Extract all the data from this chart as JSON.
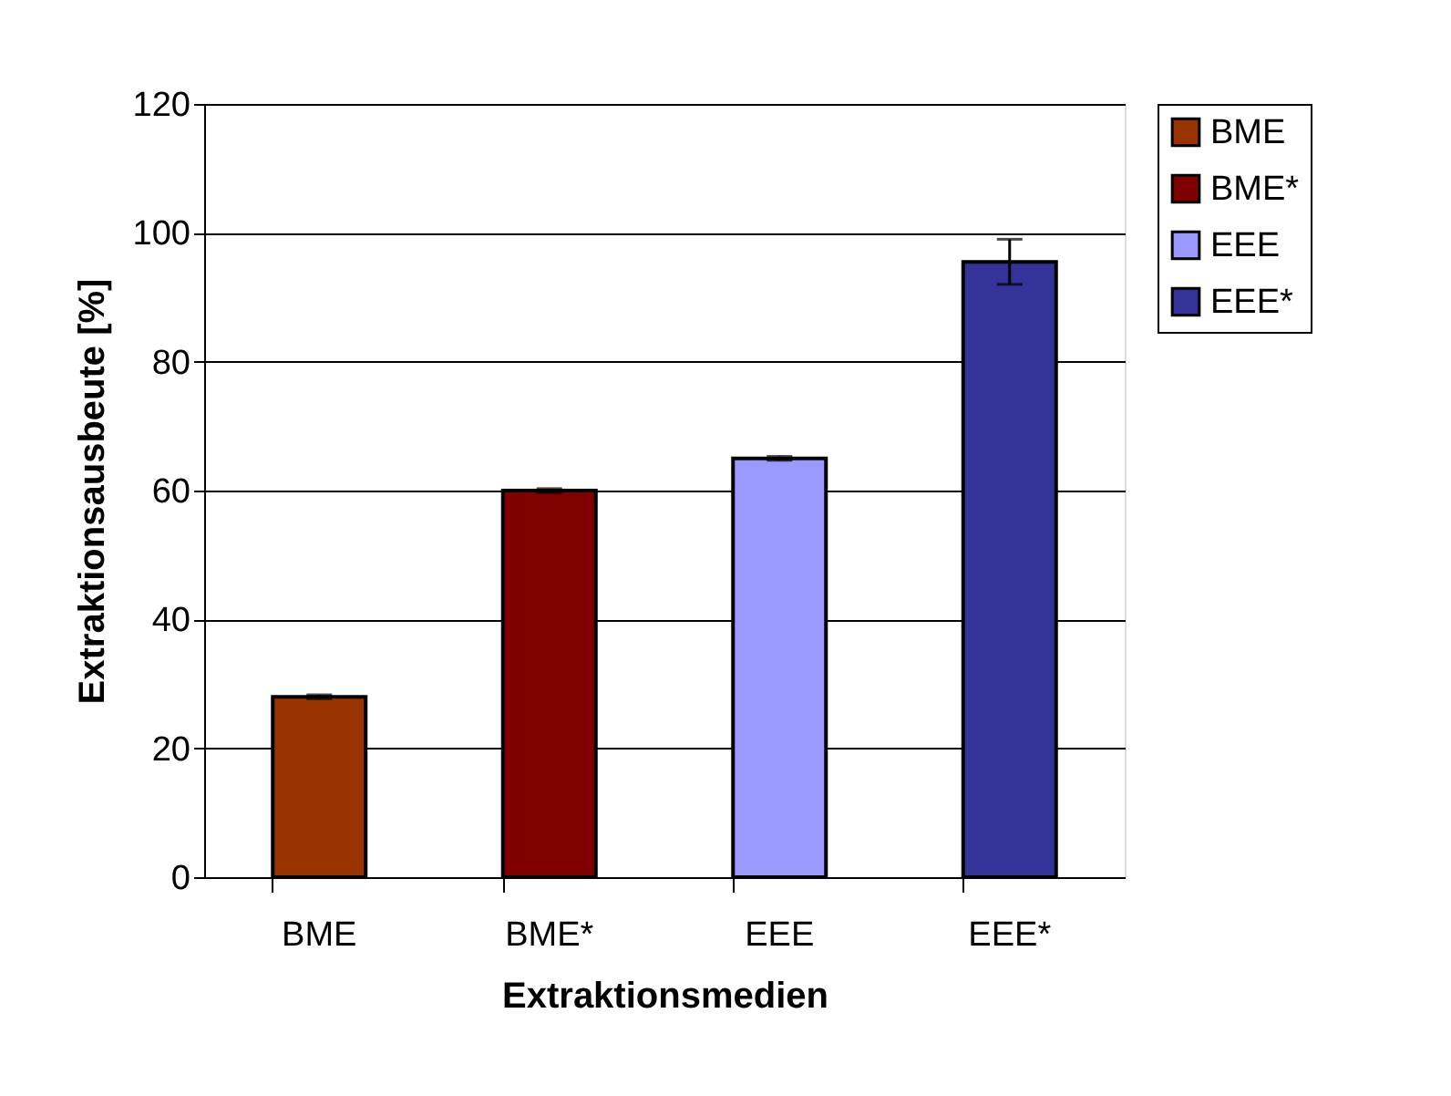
{
  "chart_data": {
    "type": "bar",
    "xlabel": "Extraktionsmedien",
    "ylabel": "Extraktionsausbeute [%]",
    "categories": [
      "BME",
      "BME*",
      "EEE",
      "EEE*"
    ],
    "series": [
      {
        "name": "BME",
        "color": "#993300",
        "values": [
          28,
          null,
          null,
          null
        ],
        "errors": [
          0.3,
          null,
          null,
          null
        ]
      },
      {
        "name": "BME*",
        "color": "#800000",
        "values": [
          null,
          60,
          null,
          null
        ],
        "errors": [
          null,
          0.3,
          null,
          null
        ]
      },
      {
        "name": "EEE",
        "color": "#9999ff",
        "values": [
          null,
          null,
          65,
          null
        ],
        "errors": [
          null,
          null,
          0.3,
          null
        ]
      },
      {
        "name": "EEE*",
        "color": "#333399",
        "values": [
          null,
          null,
          null,
          95.5
        ],
        "errors": [
          null,
          null,
          null,
          3.5
        ]
      }
    ],
    "ylim": [
      0,
      120
    ],
    "yticks": [
      0,
      20,
      40,
      60,
      80,
      100,
      120
    ],
    "grid": "y",
    "legend": "right"
  }
}
